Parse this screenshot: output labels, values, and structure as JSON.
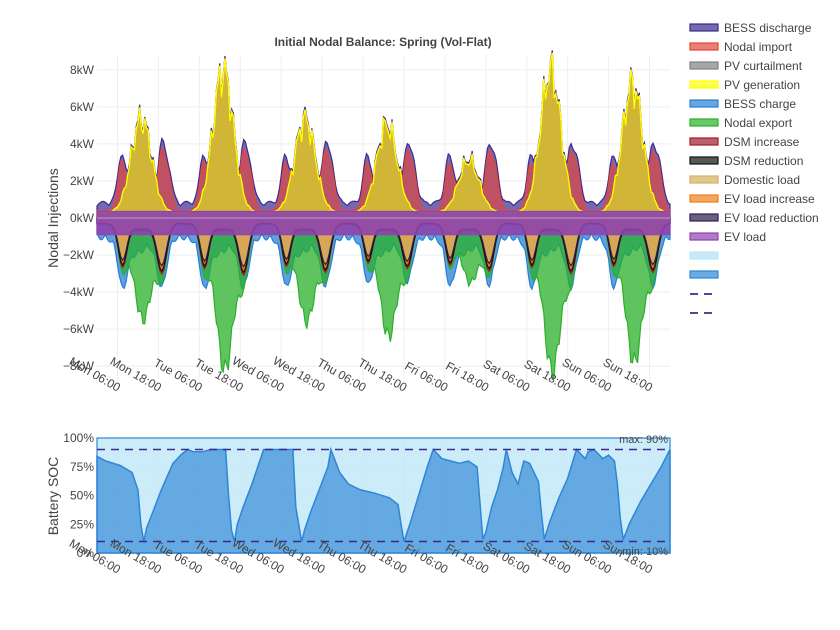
{
  "chart_data": [
    {
      "type": "area",
      "title": "Initial Nodal Balance: Spring (Vol-Flat)",
      "ylabel": "Nodal Injections",
      "ylim": [
        -8.8,
        8.8
      ],
      "y_ticks": [
        8,
        6,
        4,
        2,
        0,
        -2,
        -4,
        -6,
        -8
      ],
      "y_tick_labels": [
        "8kW",
        "6kW",
        "4kW",
        "2kW",
        "0kW",
        "−2kW",
        "−4kW",
        "−6kW",
        "−8kW"
      ],
      "x_range_hours": [
        0,
        168
      ],
      "x_tick_hours": [
        6,
        18,
        30,
        42,
        54,
        66,
        78,
        90,
        102,
        114,
        126,
        138,
        150,
        162
      ],
      "x_tick_labels": [
        "Mon 06:00",
        "Mon 18:00",
        "Tue 06:00",
        "Tue 18:00",
        "Wed 06:00",
        "Wed 18:00",
        "Thu 06:00",
        "Thu 18:00",
        "Fri 06:00",
        "Fri 18:00",
        "Sat 06:00",
        "Sat 18:00",
        "Sun 06:00",
        "Sun 18:00"
      ],
      "grid": true,
      "legend_position": "right",
      "days": [
        {
          "name": "Mon",
          "pv_peak": 5.0,
          "ev_peak": 3.6,
          "export_peak": 4.8
        },
        {
          "name": "Tue",
          "pv_peak": 7.6,
          "ev_peak": 3.7,
          "export_peak": 7.5
        },
        {
          "name": "Wed",
          "pv_peak": 5.0,
          "ev_peak": 3.5,
          "export_peak": 4.9
        },
        {
          "name": "Thu",
          "pv_peak": 4.7,
          "ev_peak": 3.2,
          "export_peak": 5.7
        },
        {
          "name": "Fri",
          "pv_peak": 2.8,
          "ev_peak": 3.4,
          "export_peak": 2.8
        },
        {
          "name": "Sat",
          "pv_peak": 7.6,
          "ev_peak": 3.6,
          "export_peak": 7.6
        },
        {
          "name": "Sun",
          "pv_peak": 6.9,
          "ev_peak": 3.5,
          "export_peak": 7.1
        }
      ],
      "series": [
        {
          "name": "BESS discharge",
          "color": "#3d2a8e"
        },
        {
          "name": "Nodal import",
          "color": "#e3473c"
        },
        {
          "name": "PV curtailment",
          "color": "#808080"
        },
        {
          "name": "PV generation",
          "color": "#ffff00"
        },
        {
          "name": "BESS charge",
          "color": "#2580d4"
        },
        {
          "name": "Nodal export",
          "color": "#2ab02a"
        },
        {
          "name": "DSM increase",
          "color": "#a01e2a"
        },
        {
          "name": "DSM reduction",
          "color": "#111111"
        },
        {
          "name": "Domestic load",
          "color": "#d4b060"
        },
        {
          "name": "EV load increase",
          "color": "#ef7f1a"
        },
        {
          "name": "EV load reduction",
          "color": "#2b1d4d"
        },
        {
          "name": "EV load",
          "color": "#8e44ad"
        },
        {
          "name": "",
          "color": "#bfe7f7"
        },
        {
          "name": "",
          "color": "#2e86d6"
        },
        {
          "name": "",
          "color": "#3d2a8e"
        },
        {
          "name": "",
          "color": "#3d2a8e"
        }
      ]
    },
    {
      "type": "area",
      "ylabel": "Battery SOC",
      "ylim": [
        0,
        100
      ],
      "y_ticks": [
        0,
        25,
        50,
        75,
        100
      ],
      "y_tick_labels": [
        "0%",
        "25%",
        "50%",
        "75%",
        "100%"
      ],
      "x_range_hours": [
        0,
        168
      ],
      "x_tick_hours": [
        6,
        18,
        30,
        42,
        54,
        66,
        78,
        90,
        102,
        114,
        126,
        138,
        150,
        162
      ],
      "x_tick_labels": [
        "Mon 06:00",
        "Mon 18:00",
        "Tue 06:00",
        "Tue 18:00",
        "Wed 06:00",
        "Wed 18:00",
        "Thu 06:00",
        "Thu 18:00",
        "Fri 06:00",
        "Fri 18:00",
        "Sat 06:00",
        "Sat 18:00",
        "Sun 06:00",
        "Sun 18:00"
      ],
      "soc_max": 90,
      "soc_min": 10,
      "max_label": "max: 90%",
      "min_label": "min: 10%",
      "soc": [
        [
          0,
          84
        ],
        [
          3,
          80
        ],
        [
          8,
          76
        ],
        [
          12,
          70
        ],
        [
          14,
          55
        ],
        [
          15,
          25
        ],
        [
          16,
          10
        ],
        [
          17,
          22
        ],
        [
          19,
          35
        ],
        [
          22,
          55
        ],
        [
          26,
          78
        ],
        [
          29,
          86
        ],
        [
          31,
          90
        ],
        [
          33,
          88
        ],
        [
          36,
          88
        ],
        [
          39,
          90
        ],
        [
          44,
          90
        ],
        [
          45,
          50
        ],
        [
          46,
          20
        ],
        [
          47,
          10
        ],
        [
          48,
          25
        ],
        [
          50,
          40
        ],
        [
          53,
          60
        ],
        [
          55,
          75
        ],
        [
          57,
          90
        ],
        [
          67,
          90
        ],
        [
          68,
          40
        ],
        [
          70,
          10
        ],
        [
          71,
          20
        ],
        [
          73,
          35
        ],
        [
          76,
          55
        ],
        [
          79,
          75
        ],
        [
          80,
          90
        ],
        [
          83,
          70
        ],
        [
          86,
          60
        ],
        [
          90,
          55
        ],
        [
          95,
          52
        ],
        [
          100,
          48
        ],
        [
          103,
          42
        ],
        [
          104,
          25
        ],
        [
          105,
          10
        ],
        [
          107,
          25
        ],
        [
          110,
          50
        ],
        [
          113,
          75
        ],
        [
          115,
          90
        ],
        [
          118,
          82
        ],
        [
          121,
          80
        ],
        [
          124,
          78
        ],
        [
          127,
          80
        ],
        [
          130,
          75
        ],
        [
          132,
          12
        ],
        [
          133,
          18
        ],
        [
          135,
          40
        ],
        [
          137,
          55
        ],
        [
          139,
          75
        ],
        [
          140,
          90
        ],
        [
          142,
          70
        ],
        [
          144,
          60
        ],
        [
          146,
          80
        ],
        [
          148,
          78
        ],
        [
          151,
          62
        ],
        [
          152,
          35
        ],
        [
          153,
          12
        ],
        [
          155,
          28
        ],
        [
          158,
          48
        ],
        [
          161,
          65
        ],
        [
          164,
          90
        ],
        [
          167,
          82
        ],
        [
          168,
          88
        ],
        [
          170,
          90
        ],
        [
          173,
          82
        ],
        [
          175,
          85
        ],
        [
          177,
          80
        ],
        [
          178,
          60
        ],
        [
          179,
          30
        ],
        [
          180,
          12
        ],
        [
          181,
          18
        ],
        [
          182,
          25
        ],
        [
          184,
          35
        ],
        [
          186,
          45
        ],
        [
          189,
          58
        ],
        [
          193,
          75
        ],
        [
          196,
          90
        ]
      ]
    }
  ]
}
